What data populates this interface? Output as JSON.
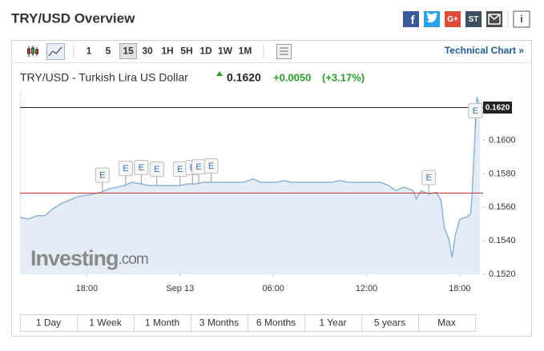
{
  "header": {
    "title": "TRY/USD Overview",
    "share": [
      "f",
      "G+",
      "ST"
    ],
    "info": "i"
  },
  "toolbar": {
    "intervals": [
      "1",
      "5",
      "15",
      "30",
      "1H",
      "5H",
      "1D",
      "1W",
      "1M"
    ],
    "selected_interval": 2,
    "technical_chart": "Technical Chart »"
  },
  "quote": {
    "name": "TRY/USD - Turkish Lira US Dollar",
    "last": "0.1620",
    "change": "+0.0050",
    "change_pct": "(+3.17%)"
  },
  "watermark": {
    "brand": "Investing",
    "suffix": ".com"
  },
  "ranges": [
    "1 Day",
    "1 Week",
    "1 Month",
    "3 Months",
    "6 Months",
    "1 Year",
    "5 years",
    "Max"
  ],
  "chart_data": {
    "type": "area",
    "color": "#8db5dc",
    "fill": "#e4edf6",
    "grid": false,
    "x": [
      -10.3,
      -9.8,
      -9.2,
      -8.7,
      -8.2,
      -7.7,
      -7.2,
      -6.7,
      -6.2,
      -5.6,
      -5.1,
      -4.6,
      -4.1,
      -3.6,
      -3.1,
      -2.5,
      -2.0,
      -1.5,
      -1.0,
      -0.5,
      0.0,
      0.5,
      1.0,
      1.5,
      2.1,
      2.6,
      3.1,
      3.6,
      4.1,
      4.7,
      5.2,
      5.7,
      6.2,
      6.7,
      7.2,
      7.7,
      8.3,
      8.8,
      9.3,
      9.8,
      10.3,
      10.8,
      11.4,
      11.9,
      12.4,
      12.9,
      13.4,
      13.9,
      14.4,
      15.0,
      15.2,
      15.5,
      16.0,
      16.5,
      16.8,
      17.0,
      17.3,
      17.5,
      17.7,
      18.0,
      18.4,
      18.7,
      18.8,
      19.0,
      19.1,
      19.3
    ],
    "values": [
      0.1554,
      0.1553,
      0.1555,
      0.1555,
      0.1559,
      0.1562,
      0.1564,
      0.1566,
      0.1567,
      0.1568,
      0.1569,
      0.1571,
      0.1572,
      0.1573,
      0.1575,
      0.1574,
      0.1573,
      0.1573,
      0.1573,
      0.1573,
      0.1573,
      0.1574,
      0.1574,
      0.1575,
      0.1575,
      0.1575,
      0.1575,
      0.1575,
      0.1575,
      0.1577,
      0.1575,
      0.1575,
      0.1575,
      0.1576,
      0.1575,
      0.1575,
      0.1575,
      0.1575,
      0.1575,
      0.1575,
      0.1576,
      0.1575,
      0.1575,
      0.1575,
      0.1575,
      0.1575,
      0.1573,
      0.157,
      0.1572,
      0.157,
      0.1565,
      0.157,
      0.1568,
      0.1569,
      0.1564,
      0.1548,
      0.1541,
      0.153,
      0.1543,
      0.1553,
      0.1554,
      0.1556,
      0.1569,
      0.1608,
      0.1626,
      0.162
    ],
    "xlim": [
      -10.3,
      19.5
    ],
    "xticks": [
      {
        "value": -6,
        "label": "18:00"
      },
      {
        "value": 0,
        "label": "Sep 13"
      },
      {
        "value": 6,
        "label": "06:00"
      },
      {
        "value": 12,
        "label": "12:00"
      },
      {
        "value": 18,
        "label": "18:00"
      }
    ],
    "ylim": [
      0.152,
      0.1629
    ],
    "yticks": [
      {
        "value": 0.152,
        "label": "0.1520"
      },
      {
        "value": 0.154,
        "label": "0.1540"
      },
      {
        "value": 0.156,
        "label": "0.1560"
      },
      {
        "value": 0.158,
        "label": "0.1580"
      },
      {
        "value": 0.16,
        "label": "0.1600"
      }
    ],
    "reference_lines": [
      {
        "value": 0.162,
        "color": "#222222",
        "label": "0.1620"
      },
      {
        "value": 0.1569,
        "color": "#c0392b"
      }
    ],
    "events": [
      {
        "x": -5.0,
        "label": "E"
      },
      {
        "x": -3.5,
        "label": "E"
      },
      {
        "x": -2.5,
        "label": "E"
      },
      {
        "x": -1.5,
        "label": "E"
      },
      {
        "x": 0.0,
        "label": "E"
      },
      {
        "x": 0.8,
        "label": "E"
      },
      {
        "x": 1.2,
        "label": "E"
      },
      {
        "x": 2.0,
        "label": "E"
      },
      {
        "x": 16.0,
        "label": "E"
      },
      {
        "x": 19.0,
        "label": "E"
      }
    ]
  }
}
